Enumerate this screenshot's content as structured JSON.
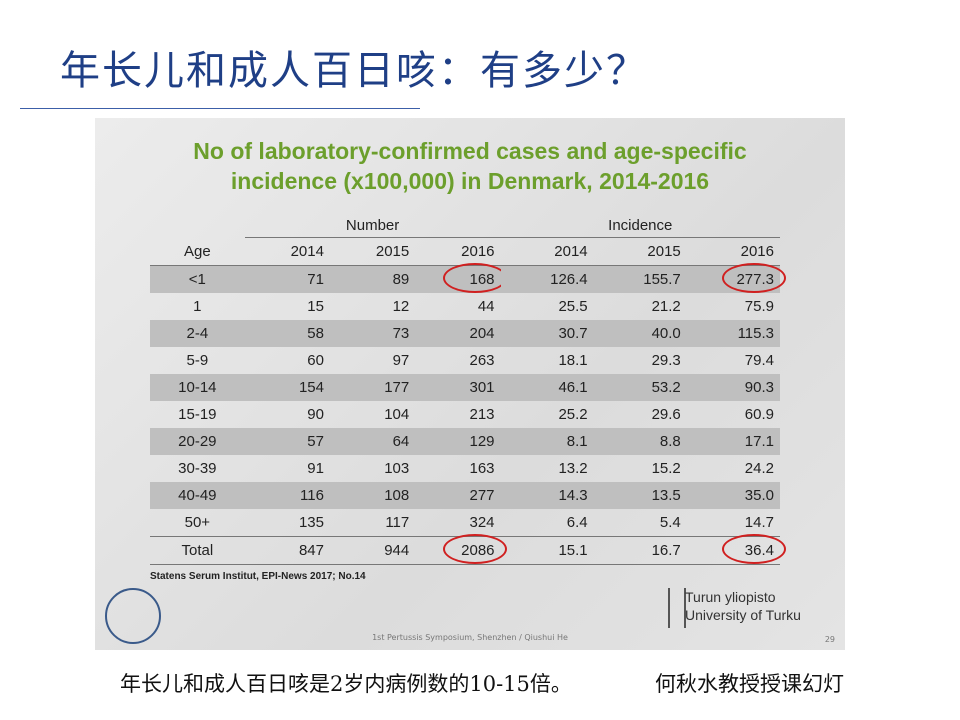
{
  "title": "年长儿和成人百日咳：有多少？",
  "slide": {
    "title_lines": [
      "No of laboratory-confirmed cases and age-specific",
      "incidence (x100,000) in Denmark, 2014-2016"
    ],
    "table": {
      "groups": [
        "Number",
        "Incidence"
      ],
      "columns": [
        "Age",
        "2014",
        "2015",
        "2016",
        "2014",
        "2015",
        "2016"
      ],
      "rows": [
        [
          "<1",
          "71",
          "89",
          "168",
          "126.4",
          "155.7",
          "277.3"
        ],
        [
          "1",
          "15",
          "12",
          "44",
          "25.5",
          "21.2",
          "75.9"
        ],
        [
          "2-4",
          "58",
          "73",
          "204",
          "30.7",
          "40.0",
          "115.3"
        ],
        [
          "5-9",
          "60",
          "97",
          "263",
          "18.1",
          "29.3",
          "79.4"
        ],
        [
          "10-14",
          "154",
          "177",
          "301",
          "46.1",
          "53.2",
          "90.3"
        ],
        [
          "15-19",
          "90",
          "104",
          "213",
          "25.2",
          "29.6",
          "60.9"
        ],
        [
          "20-29",
          "57",
          "64",
          "129",
          "8.1",
          "8.8",
          "17.1"
        ],
        [
          "30-39",
          "91",
          "103",
          "163",
          "13.2",
          "15.2",
          "24.2"
        ],
        [
          "40-49",
          "116",
          "108",
          "277",
          "14.3",
          "13.5",
          "35.0"
        ],
        [
          "50+",
          "135",
          "117",
          "324",
          "6.4",
          "5.4",
          "14.7"
        ],
        [
          "Total",
          "847",
          "944",
          "2086",
          "15.1",
          "16.7",
          "36.4"
        ]
      ]
    },
    "source": "Statens Serum Institut, EPI-News 2017; No.14",
    "logo": [
      "Turun yliopisto",
      "University of Turku"
    ],
    "footer": "1st Pertussis Symposium, Shenzhen / Qiushui He",
    "page": "29"
  },
  "caption": {
    "left": "年长儿和成人百日咳是2岁内病例数的10-15倍。",
    "right": "何秋水教授授课幻灯"
  }
}
